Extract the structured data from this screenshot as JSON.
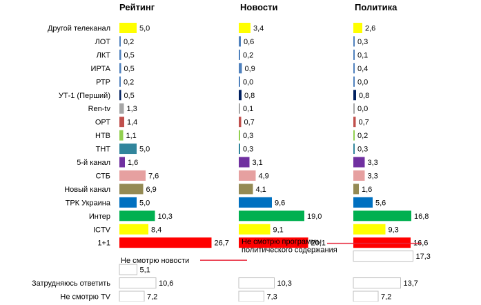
{
  "chart_data": {
    "type": "bar",
    "orientation": "horizontal",
    "categories": [
      "Другой телеканал",
      "ЛОТ",
      "ЛКТ",
      "ИРТА",
      "РТР",
      "УТ-1 (Перший)",
      "Ren-tv",
      "ОРТ",
      "НТВ",
      "ТНТ",
      "5-й канал",
      "СТБ",
      "Новый канал",
      "ТРК Украина",
      "Интер",
      "ICTV",
      "1+1",
      "",
      "",
      "Затрудняюсь ответить",
      "Не смотрю TV"
    ],
    "colors": [
      "#ffff00",
      "#4f81bd",
      "#4f81bd",
      "#4f81bd",
      "#4f81bd",
      "#002060",
      "#a6a6a6",
      "#c0504d",
      "#92d050",
      "#31859c",
      "#7030a0",
      "#e6a0a0",
      "#948a54",
      "#0070c0",
      "#00b050",
      "#ffff00",
      "#ff0000",
      "#ffffff",
      "#ffffff",
      "#ffffff",
      "#ffffff"
    ],
    "series": [
      {
        "name": "Рейтинг",
        "values": [
          5.0,
          0.2,
          0.5,
          0.5,
          0.2,
          0.5,
          1.3,
          1.4,
          1.1,
          5.0,
          1.6,
          7.6,
          6.9,
          5.0,
          10.3,
          8.4,
          26.7,
          null,
          5.1,
          10.6,
          7.2
        ],
        "labels": [
          "5,0",
          "0,2",
          "0,5",
          "0,5",
          "0,2",
          "0,5",
          "1,3",
          "1,4",
          "1,1",
          "5,0",
          "1,6",
          "7,6",
          "6,9",
          "5,0",
          "10,3",
          "8,4",
          "26,7",
          "",
          "5,1",
          "10,6",
          "7,2"
        ]
      },
      {
        "name": "Новости",
        "values": [
          3.4,
          0.6,
          0.2,
          0.9,
          0.0,
          0.8,
          0.1,
          0.7,
          0.3,
          0.3,
          3.1,
          4.9,
          4.1,
          9.6,
          19.0,
          9.1,
          20.1,
          null,
          null,
          10.3,
          7.3
        ],
        "labels": [
          "3,4",
          "0,6",
          "0,2",
          "0,9",
          "0,0",
          "0,8",
          "0,1",
          "0,7",
          "0,3",
          "0,3",
          "3,1",
          "4,9",
          "4,1",
          "9,6",
          "19,0",
          "9,1",
          "20,1",
          "",
          "",
          "10,3",
          "7,3"
        ]
      },
      {
        "name": "Политика",
        "values": [
          2.6,
          0.3,
          0.1,
          0.4,
          0.0,
          0.8,
          0.0,
          0.7,
          0.2,
          0.3,
          3.3,
          3.3,
          1.6,
          5.6,
          16.8,
          9.3,
          16.6,
          17.3,
          null,
          13.7,
          7.2
        ],
        "labels": [
          "2,6",
          "0,3",
          "0,1",
          "0,4",
          "0,0",
          "0,8",
          "0,0",
          "0,7",
          "0,2",
          "0,3",
          "3,3",
          "3,3",
          "1,6",
          "5,6",
          "16,8",
          "9,3",
          "16,6",
          "17,3",
          "",
          "13,7",
          "7,2"
        ]
      }
    ],
    "annotations": [
      {
        "text": "Не смотрю новости",
        "series": "Новости",
        "category_index": 18
      },
      {
        "text": "Не смотрю программы\nполитического содержания",
        "series": "Политика",
        "category_index": 17
      }
    ],
    "annotation_line_color": "#e8283c",
    "grid": false,
    "legend": "none"
  }
}
